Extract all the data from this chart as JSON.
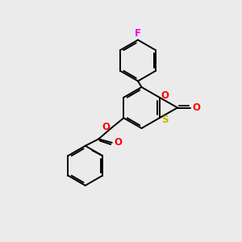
{
  "bg_color": "#ebebeb",
  "bond_color": "#000000",
  "atom_colors": {
    "F": "#ee00ee",
    "O": "#ff0000",
    "S": "#bbbb00",
    "C": "#000000"
  },
  "lw": 1.4,
  "fs": 8.5
}
